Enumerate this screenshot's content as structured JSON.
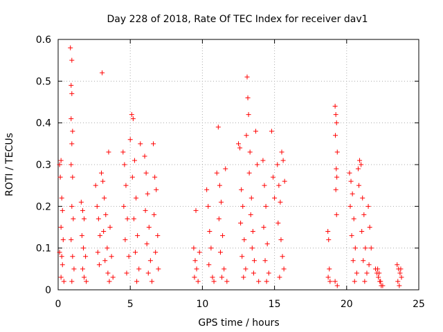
{
  "chart_data": {
    "type": "scatter",
    "title": "Day 228 of 2018, Rate Of TEC Index for receiver dav1",
    "xlabel": "GPS time / hours",
    "ylabel": "ROTI / TECUs",
    "xlim": [
      0,
      25
    ],
    "ylim": [
      0,
      0.6
    ],
    "xticks": [
      0,
      5,
      10,
      15,
      20,
      25
    ],
    "yticks": [
      0,
      0.1,
      0.2,
      0.3,
      0.4,
      0.5,
      0.6
    ],
    "grid": true,
    "marker": "+",
    "color": "#ff0000",
    "series": [
      {
        "name": "ROTI",
        "points": [
          [
            0.1,
            0.3
          ],
          [
            0.2,
            0.31
          ],
          [
            0.15,
            0.27
          ],
          [
            0.25,
            0.22
          ],
          [
            0.3,
            0.19
          ],
          [
            0.2,
            0.15
          ],
          [
            0.35,
            0.12
          ],
          [
            0.1,
            0.09
          ],
          [
            0.3,
            0.06
          ],
          [
            0.2,
            0.03
          ],
          [
            0.4,
            0.02
          ],
          [
            0.25,
            0.08
          ],
          [
            0.85,
            0.58
          ],
          [
            0.95,
            0.55
          ],
          [
            0.9,
            0.49
          ],
          [
            0.95,
            0.47
          ],
          [
            0.9,
            0.41
          ],
          [
            1.0,
            0.38
          ],
          [
            0.95,
            0.35
          ],
          [
            0.9,
            0.3
          ],
          [
            1.0,
            0.27
          ],
          [
            0.95,
            0.2
          ],
          [
            1.05,
            0.17
          ],
          [
            0.9,
            0.12
          ],
          [
            1.0,
            0.08
          ],
          [
            1.1,
            0.05
          ],
          [
            0.95,
            0.02
          ],
          [
            1.6,
            0.21
          ],
          [
            1.7,
            0.19
          ],
          [
            1.8,
            0.17
          ],
          [
            1.65,
            0.13
          ],
          [
            1.75,
            0.1
          ],
          [
            1.9,
            0.08
          ],
          [
            1.7,
            0.05
          ],
          [
            1.8,
            0.03
          ],
          [
            1.95,
            0.02
          ],
          [
            2.6,
            0.25
          ],
          [
            2.7,
            0.2
          ],
          [
            2.8,
            0.17
          ],
          [
            2.9,
            0.13
          ],
          [
            2.75,
            0.09
          ],
          [
            2.85,
            0.06
          ],
          [
            3.0,
            0.28
          ],
          [
            3.1,
            0.26
          ],
          [
            3.05,
            0.52
          ],
          [
            3.2,
            0.22
          ],
          [
            3.3,
            0.18
          ],
          [
            3.15,
            0.14
          ],
          [
            3.4,
            0.1
          ],
          [
            3.25,
            0.07
          ],
          [
            3.5,
            0.33
          ],
          [
            3.6,
            0.15
          ],
          [
            3.45,
            0.04
          ],
          [
            3.7,
            0.08
          ],
          [
            3.8,
            0.03
          ],
          [
            3.55,
            0.02
          ],
          [
            4.5,
            0.33
          ],
          [
            4.6,
            0.3
          ],
          [
            4.7,
            0.25
          ],
          [
            4.55,
            0.2
          ],
          [
            4.8,
            0.17
          ],
          [
            4.65,
            0.12
          ],
          [
            4.9,
            0.08
          ],
          [
            4.75,
            0.04
          ],
          [
            5.0,
            0.36
          ],
          [
            5.1,
            0.42
          ],
          [
            5.2,
            0.41
          ],
          [
            5.3,
            0.31
          ],
          [
            5.15,
            0.27
          ],
          [
            5.4,
            0.22
          ],
          [
            5.25,
            0.17
          ],
          [
            5.5,
            0.13
          ],
          [
            5.35,
            0.09
          ],
          [
            5.6,
            0.05
          ],
          [
            5.45,
            0.02
          ],
          [
            5.7,
            0.35
          ],
          [
            6.0,
            0.32
          ],
          [
            6.1,
            0.28
          ],
          [
            6.2,
            0.23
          ],
          [
            6.05,
            0.19
          ],
          [
            6.3,
            0.15
          ],
          [
            6.15,
            0.11
          ],
          [
            6.4,
            0.07
          ],
          [
            6.25,
            0.04
          ],
          [
            6.5,
            0.02
          ],
          [
            6.6,
            0.35
          ],
          [
            6.7,
            0.27
          ],
          [
            6.8,
            0.24
          ],
          [
            6.65,
            0.18
          ],
          [
            6.9,
            0.13
          ],
          [
            6.75,
            0.09
          ],
          [
            6.95,
            0.05
          ],
          [
            9.4,
            0.1
          ],
          [
            9.5,
            0.07
          ],
          [
            9.6,
            0.05
          ],
          [
            9.45,
            0.03
          ],
          [
            9.55,
            0.19
          ],
          [
            9.7,
            0.02
          ],
          [
            9.8,
            0.09
          ],
          [
            10.3,
            0.24
          ],
          [
            10.4,
            0.2
          ],
          [
            10.5,
            0.14
          ],
          [
            10.6,
            0.1
          ],
          [
            10.45,
            0.06
          ],
          [
            10.7,
            0.03
          ],
          [
            10.8,
            0.02
          ],
          [
            11.0,
            0.28
          ],
          [
            11.1,
            0.39
          ],
          [
            11.2,
            0.25
          ],
          [
            11.3,
            0.21
          ],
          [
            11.15,
            0.17
          ],
          [
            11.4,
            0.13
          ],
          [
            11.25,
            0.09
          ],
          [
            11.5,
            0.05
          ],
          [
            11.35,
            0.03
          ],
          [
            11.6,
            0.29
          ],
          [
            11.7,
            0.02
          ],
          [
            12.5,
            0.35
          ],
          [
            12.6,
            0.34
          ],
          [
            12.7,
            0.24
          ],
          [
            12.8,
            0.2
          ],
          [
            12.65,
            0.16
          ],
          [
            12.9,
            0.12
          ],
          [
            12.75,
            0.08
          ],
          [
            13.0,
            0.05
          ],
          [
            12.85,
            0.03
          ],
          [
            13.1,
            0.51
          ],
          [
            13.15,
            0.46
          ],
          [
            13.2,
            0.42
          ],
          [
            13.05,
            0.37
          ],
          [
            13.3,
            0.33
          ],
          [
            13.25,
            0.28
          ],
          [
            13.4,
            0.22
          ],
          [
            13.35,
            0.18
          ],
          [
            13.5,
            0.14
          ],
          [
            13.45,
            0.1
          ],
          [
            13.6,
            0.07
          ],
          [
            13.55,
            0.04
          ],
          [
            13.7,
            0.38
          ],
          [
            13.8,
            0.3
          ],
          [
            13.9,
            0.02
          ],
          [
            14.2,
            0.31
          ],
          [
            14.3,
            0.25
          ],
          [
            14.4,
            0.2
          ],
          [
            14.25,
            0.15
          ],
          [
            14.5,
            0.11
          ],
          [
            14.35,
            0.07
          ],
          [
            14.6,
            0.04
          ],
          [
            14.45,
            0.02
          ],
          [
            14.8,
            0.38
          ],
          [
            14.9,
            0.27
          ],
          [
            15.0,
            0.22
          ],
          [
            15.2,
            0.3
          ],
          [
            15.3,
            0.25
          ],
          [
            15.4,
            0.21
          ],
          [
            15.25,
            0.16
          ],
          [
            15.5,
            0.33
          ],
          [
            15.45,
            0.12
          ],
          [
            15.6,
            0.31
          ],
          [
            15.55,
            0.08
          ],
          [
            15.7,
            0.26
          ],
          [
            15.65,
            0.05
          ],
          [
            15.35,
            0.03
          ],
          [
            18.7,
            0.14
          ],
          [
            18.75,
            0.12
          ],
          [
            18.8,
            0.05
          ],
          [
            18.72,
            0.03
          ],
          [
            18.85,
            0.02
          ],
          [
            19.2,
            0.44
          ],
          [
            19.25,
            0.42
          ],
          [
            19.3,
            0.4
          ],
          [
            19.22,
            0.37
          ],
          [
            19.35,
            0.33
          ],
          [
            19.28,
            0.29
          ],
          [
            19.32,
            0.27
          ],
          [
            19.25,
            0.24
          ],
          [
            19.3,
            0.18
          ],
          [
            19.2,
            0.02
          ],
          [
            19.35,
            0.01
          ],
          [
            20.2,
            0.28
          ],
          [
            20.3,
            0.26
          ],
          [
            20.4,
            0.23
          ],
          [
            20.25,
            0.2
          ],
          [
            20.5,
            0.17
          ],
          [
            20.35,
            0.13
          ],
          [
            20.6,
            0.1
          ],
          [
            20.45,
            0.07
          ],
          [
            20.7,
            0.04
          ],
          [
            20.55,
            0.02
          ],
          [
            20.8,
            0.29
          ],
          [
            20.9,
            0.31
          ],
          [
            21.0,
            0.3
          ],
          [
            20.85,
            0.25
          ],
          [
            21.1,
            0.22
          ],
          [
            21.2,
            0.18
          ],
          [
            21.05,
            0.14
          ],
          [
            21.3,
            0.1
          ],
          [
            21.15,
            0.07
          ],
          [
            21.4,
            0.04
          ],
          [
            21.25,
            0.02
          ],
          [
            21.5,
            0.2
          ],
          [
            21.6,
            0.15
          ],
          [
            21.7,
            0.1
          ],
          [
            21.55,
            0.06
          ],
          [
            22.0,
            0.05
          ],
          [
            22.1,
            0.04
          ],
          [
            22.2,
            0.03
          ],
          [
            22.3,
            0.02
          ],
          [
            22.4,
            0.01
          ],
          [
            22.15,
            0.05
          ],
          [
            22.35,
            0.02
          ],
          [
            22.5,
            0.01
          ],
          [
            22.25,
            0.04
          ],
          [
            23.5,
            0.06
          ],
          [
            23.6,
            0.05
          ],
          [
            23.7,
            0.04
          ],
          [
            23.8,
            0.03
          ],
          [
            23.55,
            0.02
          ],
          [
            23.65,
            0.01
          ],
          [
            23.75,
            0.05
          ]
        ]
      }
    ]
  }
}
